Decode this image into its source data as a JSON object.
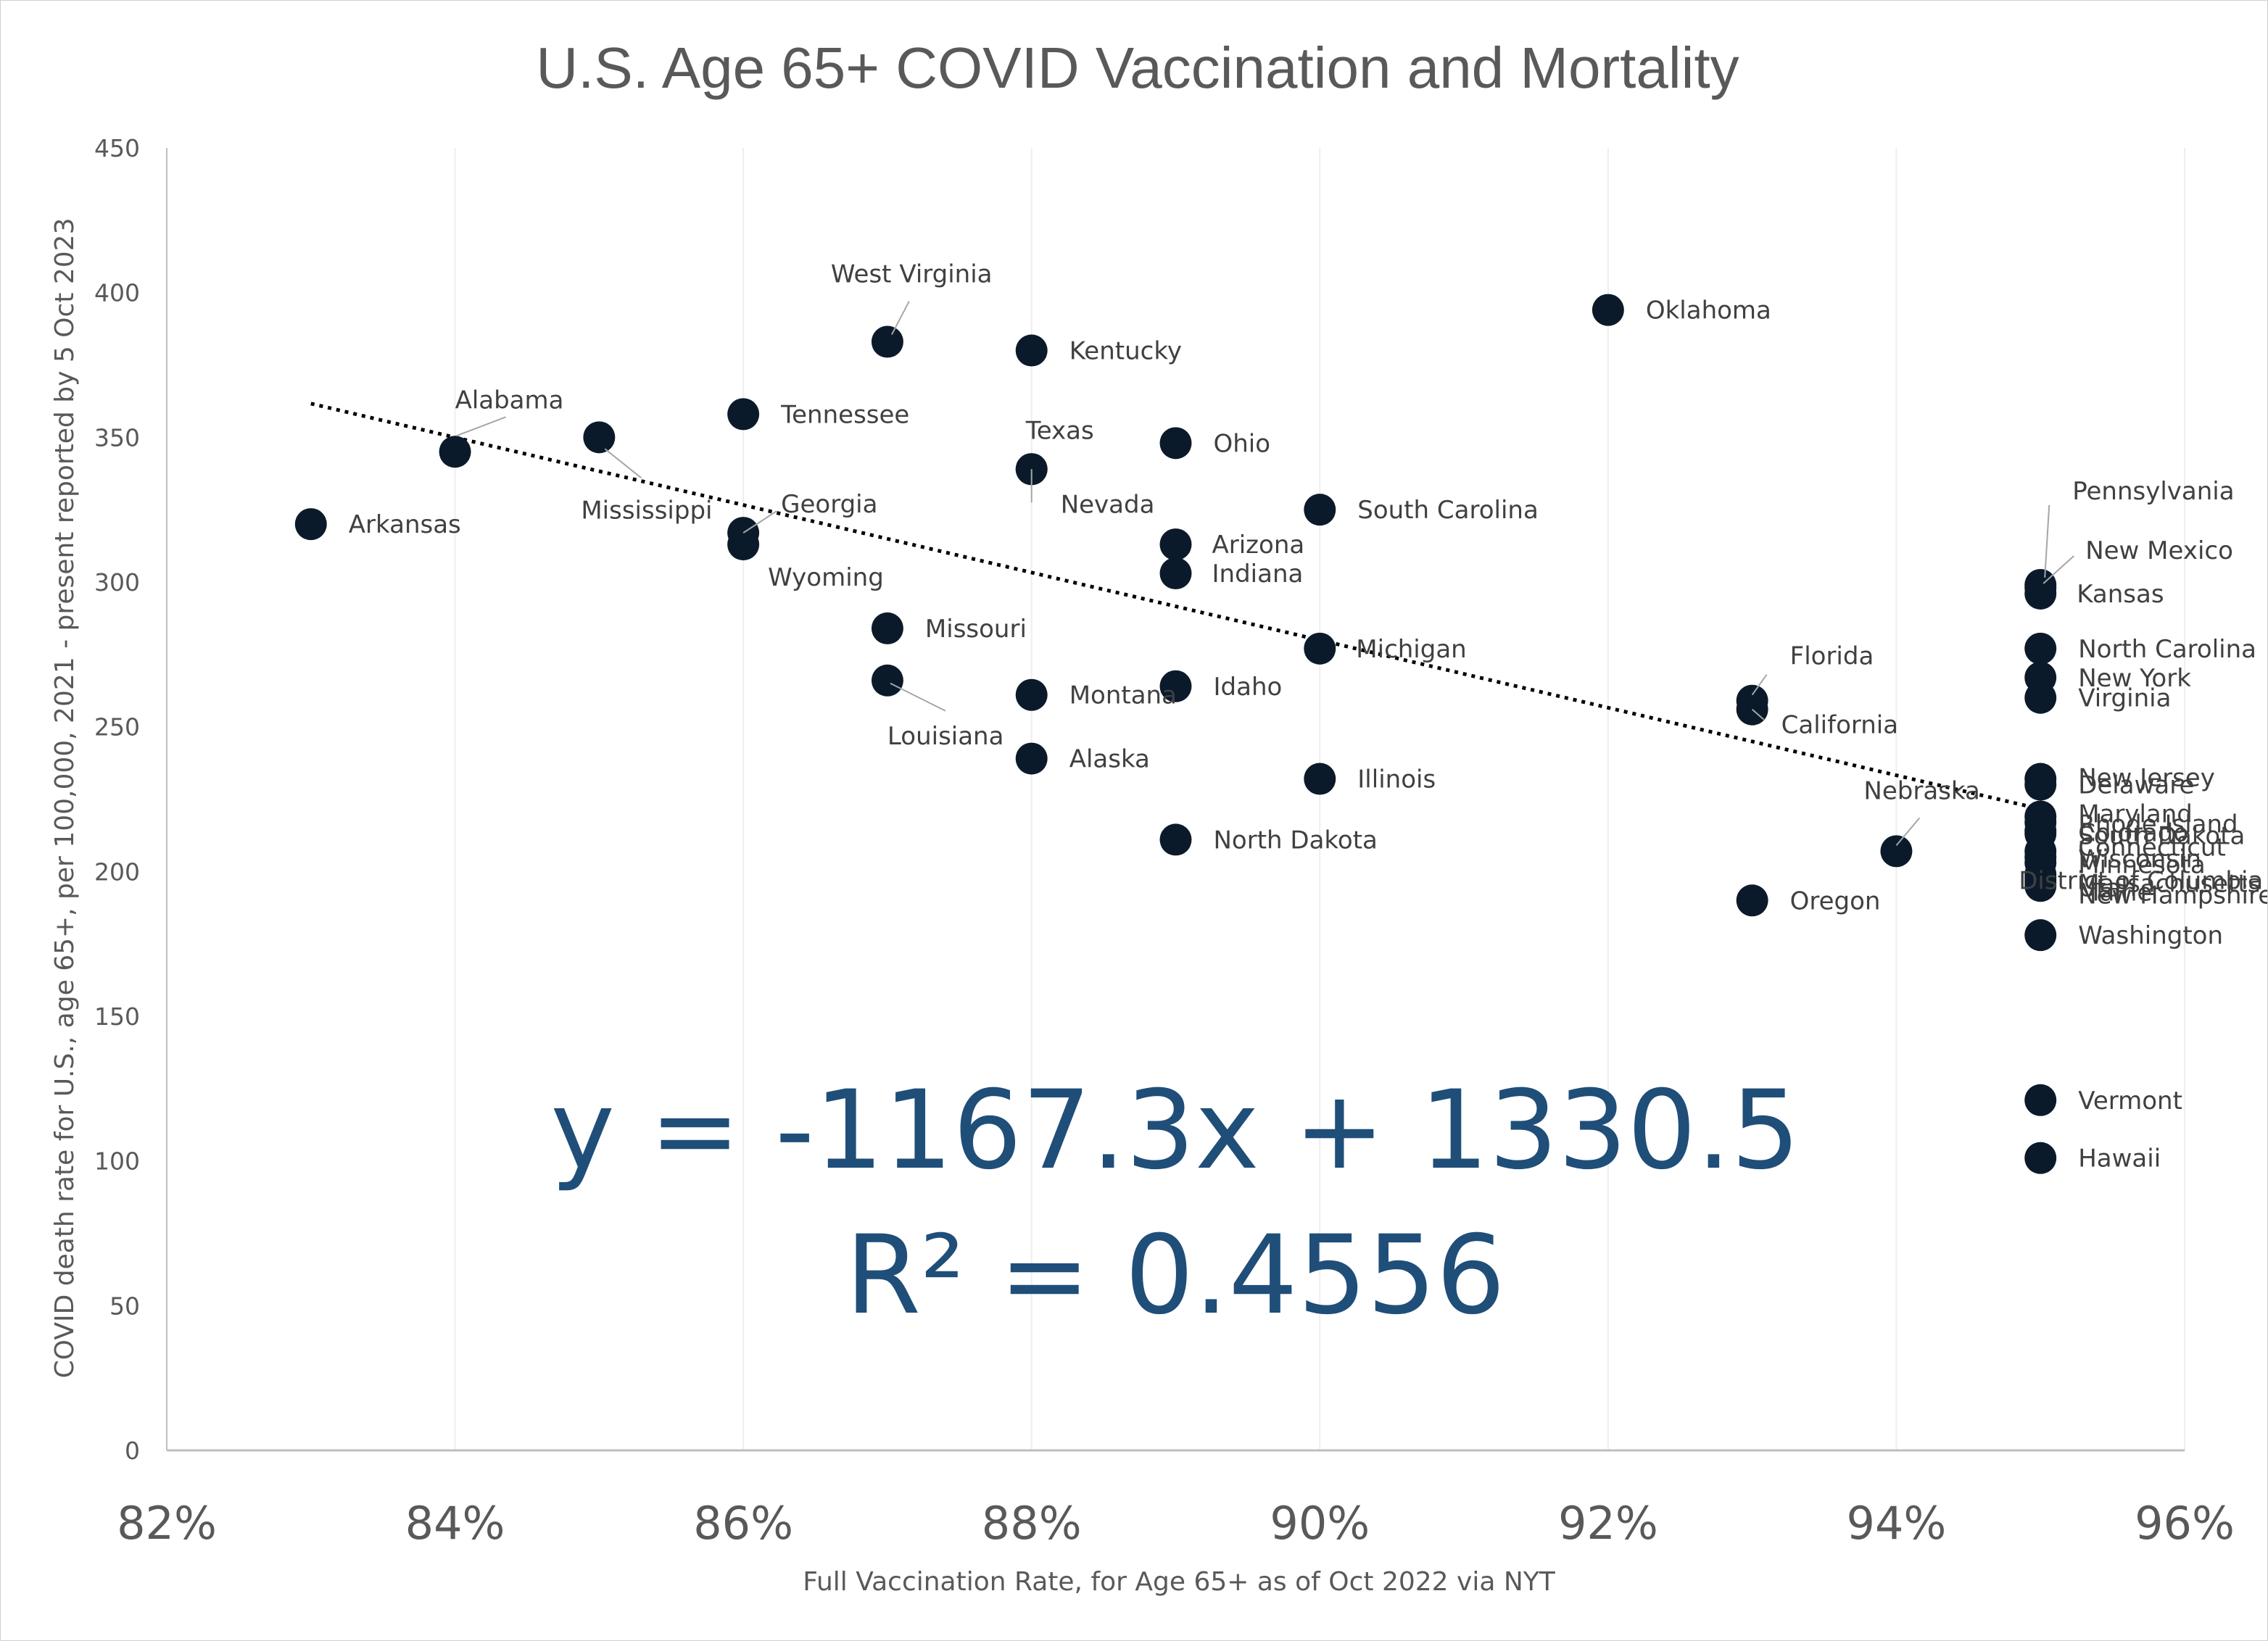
{
  "chart_data": {
    "type": "scatter",
    "title": "U.S. Age 65+ COVID Vaccination and Mortality",
    "xlabel": "Full Vaccination Rate, for Age 65+ as of Oct 2022 via NYT",
    "ylabel": "COVID death rate for U.S., age 65+, per 100,000, 2021 - present reported by 5 Oct 2023",
    "xlim": [
      0.82,
      0.96
    ],
    "ylim": [
      0,
      450
    ],
    "x_ticks": [
      "82%",
      "84%",
      "86%",
      "88%",
      "90%",
      "92%",
      "94%",
      "96%"
    ],
    "y_ticks": [
      "0",
      "50",
      "100",
      "150",
      "200",
      "250",
      "300",
      "350",
      "400",
      "450"
    ],
    "grid": "vertical",
    "marker_color": "#0b1a2b",
    "trendline": {
      "style": "dotted",
      "slope": -1167.3,
      "intercept": 1330.5,
      "x_range": [
        0.83,
        0.95
      ],
      "equation": "y = -1167.3x + 1330.5",
      "r_squared": "R² = 0.4556",
      "color": "#000000",
      "text_color": "#1f4e79"
    },
    "points": [
      {
        "name": "Arkansas",
        "x": 0.83,
        "y": 320
      },
      {
        "name": "Alabama",
        "x": 0.84,
        "y": 345
      },
      {
        "name": "Mississippi",
        "x": 0.85,
        "y": 350
      },
      {
        "name": "Tennessee",
        "x": 0.86,
        "y": 358
      },
      {
        "name": "Georgia",
        "x": 0.86,
        "y": 317
      },
      {
        "name": "Wyoming",
        "x": 0.86,
        "y": 313
      },
      {
        "name": "West Virginia",
        "x": 0.87,
        "y": 383
      },
      {
        "name": "Missouri",
        "x": 0.87,
        "y": 284
      },
      {
        "name": "Louisiana",
        "x": 0.87,
        "y": 266
      },
      {
        "name": "Kentucky",
        "x": 0.88,
        "y": 380
      },
      {
        "name": "Texas",
        "x": 0.88,
        "y": 339
      },
      {
        "name": "Nevada",
        "x": 0.88,
        "y": 339
      },
      {
        "name": "Montana",
        "x": 0.88,
        "y": 261
      },
      {
        "name": "Alaska",
        "x": 0.88,
        "y": 239
      },
      {
        "name": "Ohio",
        "x": 0.89,
        "y": 348
      },
      {
        "name": "Arizona",
        "x": 0.89,
        "y": 313
      },
      {
        "name": "Indiana",
        "x": 0.89,
        "y": 303
      },
      {
        "name": "Idaho",
        "x": 0.89,
        "y": 264
      },
      {
        "name": "North Dakota",
        "x": 0.89,
        "y": 211
      },
      {
        "name": "South Carolina",
        "x": 0.9,
        "y": 325
      },
      {
        "name": "Michigan",
        "x": 0.9,
        "y": 277
      },
      {
        "name": "Illinois",
        "x": 0.9,
        "y": 232
      },
      {
        "name": "Oklahoma",
        "x": 0.92,
        "y": 394
      },
      {
        "name": "Florida",
        "x": 0.93,
        "y": 259
      },
      {
        "name": "California",
        "x": 0.93,
        "y": 256
      },
      {
        "name": "Oregon",
        "x": 0.93,
        "y": 190
      },
      {
        "name": "Nebraska",
        "x": 0.94,
        "y": 207
      },
      {
        "name": "Pennsylvania",
        "x": 0.95,
        "y": 299
      },
      {
        "name": "New Mexico",
        "x": 0.95,
        "y": 298
      },
      {
        "name": "Kansas",
        "x": 0.95,
        "y": 296
      },
      {
        "name": "North Carolina",
        "x": 0.95,
        "y": 277
      },
      {
        "name": "New York",
        "x": 0.95,
        "y": 267
      },
      {
        "name": "Virginia",
        "x": 0.95,
        "y": 260
      },
      {
        "name": "New Jersey",
        "x": 0.95,
        "y": 232
      },
      {
        "name": "Delaware",
        "x": 0.95,
        "y": 230
      },
      {
        "name": "Maryland",
        "x": 0.95,
        "y": 219
      },
      {
        "name": "Rhode Island",
        "x": 0.95,
        "y": 217
      },
      {
        "name": "Colorado",
        "x": 0.95,
        "y": 214
      },
      {
        "name": "South Dakota",
        "x": 0.95,
        "y": 213
      },
      {
        "name": "Connecticut",
        "x": 0.95,
        "y": 207
      },
      {
        "name": "Wisconsin",
        "x": 0.95,
        "y": 205
      },
      {
        "name": "Minnesota",
        "x": 0.95,
        "y": 203
      },
      {
        "name": "District of Columbia",
        "x": 0.95,
        "y": 199
      },
      {
        "name": "Massachusetts",
        "x": 0.95,
        "y": 198
      },
      {
        "name": "Utah",
        "x": 0.95,
        "y": 197
      },
      {
        "name": "Maine",
        "x": 0.95,
        "y": 196
      },
      {
        "name": "New Hampshire",
        "x": 0.95,
        "y": 195
      },
      {
        "name": "Washington",
        "x": 0.95,
        "y": 178
      },
      {
        "name": "Vermont",
        "x": 0.95,
        "y": 121
      },
      {
        "name": "Hawaii",
        "x": 0.95,
        "y": 101
      }
    ]
  }
}
